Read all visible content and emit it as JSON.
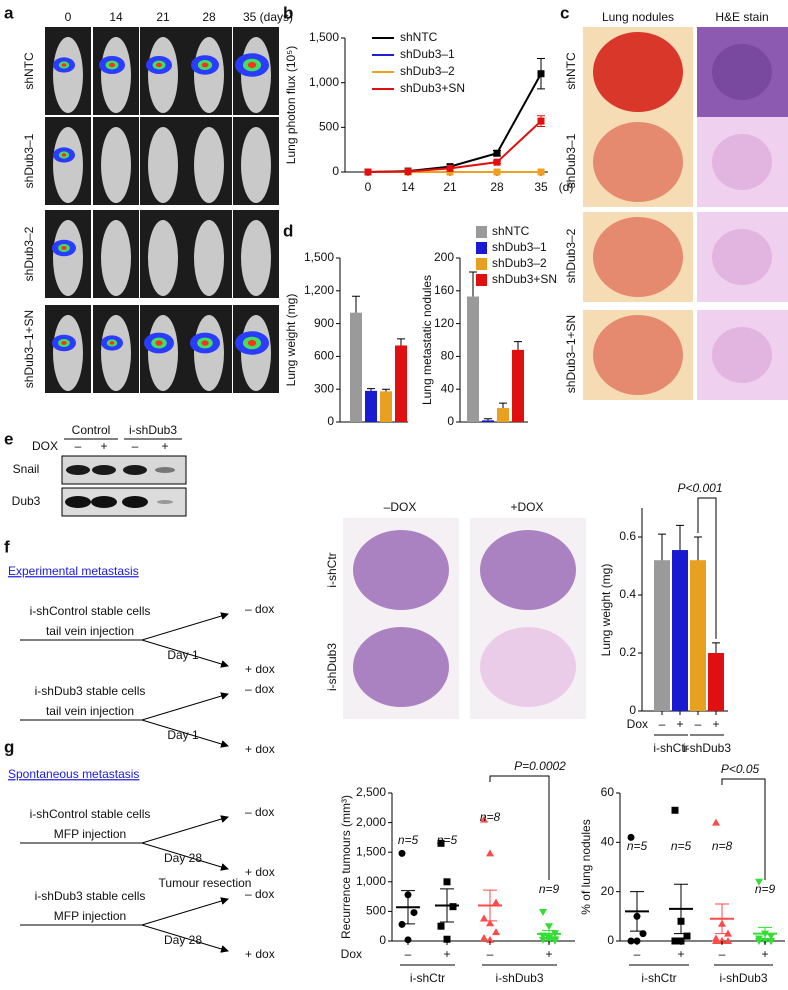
{
  "panel_labels": [
    "a",
    "b",
    "c",
    "d",
    "e",
    "f",
    "g"
  ],
  "imaging": {
    "days": [
      "0",
      "14",
      "21",
      "28",
      "35 (days)"
    ],
    "rows": [
      "shNTC",
      "shDub3–1",
      "shDub3–2",
      "shDub3–1+SN"
    ]
  },
  "histology": {
    "columns": [
      "Lung nodules",
      "H&E stain"
    ],
    "rows": [
      "shNTC",
      "shDub3–1",
      "shDub3–2",
      "shDub3–1+SN"
    ]
  },
  "western": {
    "groups": [
      "Control",
      "i-shDub3"
    ],
    "treatment": "DOX",
    "lanes": [
      "–",
      "+",
      "–",
      "+"
    ],
    "proteins": [
      "Snail",
      "Dub3"
    ]
  },
  "experimental": {
    "title": "Experimental metastasis",
    "flows": [
      {
        "cells": "i-shControl stable cells",
        "route": "tail vein injection",
        "day": "Day 1",
        "arms": [
          "– dox",
          "+ dox"
        ]
      },
      {
        "cells": "i-shDub3 stable cells",
        "route": "tail vein injection",
        "day": "Day 1",
        "arms": [
          "– dox",
          "+ dox"
        ]
      }
    ],
    "image_columns": [
      "–DOX",
      "+DOX"
    ],
    "image_rows": [
      "i-shCtr",
      "i-shDub3"
    ]
  },
  "spontaneous": {
    "title": "Spontaneous metastasis",
    "flows": [
      {
        "cells": "i-shControl stable cells",
        "route": "MFP injection",
        "day": "Day 28",
        "arms": [
          "– dox",
          "+ dox"
        ]
      },
      {
        "cells": "i-shDub3 stable cells",
        "route": "MFP injection",
        "day": "Day 28",
        "arms": [
          "– dox",
          "+ dox"
        ]
      }
    ],
    "step": "Tumour resection"
  },
  "chart_data": [
    {
      "type": "line",
      "ylabel": "Lung photon flux (10⁵)",
      "xlabel": "(d)",
      "categories": [
        "0",
        "14",
        "21",
        "28",
        "35"
      ],
      "ylim": [
        0,
        1500
      ],
      "yticks": [
        0,
        500,
        {
          "value": 1000,
          "label": "1,000"
        },
        {
          "value": 1500,
          "label": "1,500"
        }
      ],
      "series": [
        {
          "name": "shNTC",
          "color": "#000000",
          "values": [
            0,
            10,
            60,
            210,
            1100
          ],
          "errors": [
            0,
            0,
            0,
            30,
            170
          ]
        },
        {
          "name": "shDub3–1",
          "color": "#1f1fd6",
          "values": [
            0,
            0,
            0,
            0,
            0
          ]
        },
        {
          "name": "shDub3–2",
          "color": "#f0a020",
          "values": [
            0,
            0,
            0,
            0,
            0
          ]
        },
        {
          "name": "shDub3+SN",
          "color": "#e01010",
          "values": [
            0,
            5,
            40,
            110,
            570
          ],
          "errors": [
            0,
            0,
            0,
            15,
            60
          ]
        }
      ]
    },
    {
      "type": "bar",
      "ylabel": "Lung weight (mg)",
      "ylim": [
        0,
        1500
      ],
      "yticks": [
        0,
        300,
        600,
        900,
        {
          "value": 1200,
          "label": "1,200"
        },
        {
          "value": 1500,
          "label": "1,500"
        }
      ],
      "values": [
        1000,
        285,
        280,
        700
      ],
      "errors": [
        150,
        20,
        20,
        60
      ],
      "colors": [
        "#9a9a9a",
        "#1a1ad0",
        "#e8a020",
        "#e01010"
      ]
    },
    {
      "type": "bar",
      "ylabel": "Lung metastatic nodules",
      "ylim": [
        0,
        200
      ],
      "yticks": [
        0,
        40,
        80,
        120,
        160,
        200
      ],
      "values": [
        153,
        2,
        17,
        88
      ],
      "errors": [
        30,
        2,
        6,
        10
      ],
      "colors": [
        "#9a9a9a",
        "#1a1ad0",
        "#e8a020",
        "#e01010"
      ],
      "legend": [
        "shNTC",
        "shDub3–1",
        "shDub3–2",
        "shDub3+SN"
      ]
    },
    {
      "type": "bar",
      "ylabel": "Lung weight (mg)",
      "ylim": [
        0,
        0.7
      ],
      "yticks": [
        0,
        0.2,
        0.4,
        0.6
      ],
      "values": [
        0.52,
        0.555,
        0.52,
        0.2
      ],
      "errors": [
        0.09,
        0.085,
        0.08,
        0.035
      ],
      "colors": [
        "#9a9a9a",
        "#1a1ad0",
        "#e8a020",
        "#e01010"
      ],
      "x_title": "Dox",
      "x_labels": [
        "–",
        "+",
        "–",
        "+"
      ],
      "group_labels": [
        "i-shCtr",
        "i-shDub3"
      ],
      "annotation": "P<0.001"
    },
    {
      "type": "strip",
      "ylabel": "Recurrence tumours (mm³)",
      "ylim": [
        0,
        2500
      ],
      "yticks": [
        0,
        500,
        {
          "value": 1000,
          "label": "1,000"
        },
        {
          "value": 1500,
          "label": "1,500"
        },
        {
          "value": 2000,
          "label": "2,000"
        },
        {
          "value": 2500,
          "label": "2,500"
        }
      ],
      "groups": [
        {
          "values": [
            1480,
            780,
            480,
            280,
            20
          ],
          "mean": 570,
          "sem": 280,
          "color": "#000000",
          "marker": "circle",
          "n_label": "n=5"
        },
        {
          "values": [
            1650,
            1000,
            580,
            250,
            30
          ],
          "mean": 600,
          "sem": 280,
          "color": "#000000",
          "marker": "square",
          "n_label": "n=5"
        },
        {
          "values": [
            2050,
            1480,
            650,
            380,
            300,
            150,
            50,
            20
          ],
          "mean": 600,
          "sem": 260,
          "color": "#ff4a4a",
          "marker": "triangle",
          "n_label": "n=8"
        },
        {
          "values": [
            490,
            250,
            130,
            90,
            50,
            30,
            20,
            10,
            5
          ],
          "mean": 120,
          "sem": 60,
          "color": "#33dd33",
          "marker": "triangle-down",
          "n_label": "n=9"
        }
      ],
      "x_title": "Dox",
      "x_labels": [
        "–",
        "+",
        "–",
        "+"
      ],
      "group_labels": [
        "i-shCtr",
        "i-shDub3"
      ],
      "annotation": "P=0.0002"
    },
    {
      "type": "strip",
      "ylabel": "% of lung nodules",
      "ylim": [
        0,
        60
      ],
      "yticks": [
        0,
        20,
        40,
        60
      ],
      "groups": [
        {
          "values": [
            42,
            10,
            3,
            0,
            0
          ],
          "mean": 12,
          "sem": 8,
          "color": "#000000",
          "marker": "circle",
          "n_label": "n=5"
        },
        {
          "values": [
            53,
            8,
            2,
            0,
            0
          ],
          "mean": 13,
          "sem": 10,
          "color": "#000000",
          "marker": "square",
          "n_label": "n=5"
        },
        {
          "values": [
            48,
            7,
            3,
            1,
            0,
            0,
            0,
            0
          ],
          "mean": 9,
          "sem": 6,
          "color": "#ff4a4a",
          "marker": "triangle",
          "n_label": "n=8"
        },
        {
          "values": [
            24,
            3,
            2,
            1,
            0,
            0,
            0,
            0,
            0
          ],
          "mean": 3,
          "sem": 2.5,
          "color": "#33dd33",
          "marker": "triangle-down",
          "n_label": "n=9"
        }
      ],
      "x_labels": [
        "–",
        "+",
        "–",
        "+"
      ],
      "group_labels": [
        "i-shCtr",
        "i-shDub3"
      ],
      "annotation": "P<0.05"
    }
  ]
}
